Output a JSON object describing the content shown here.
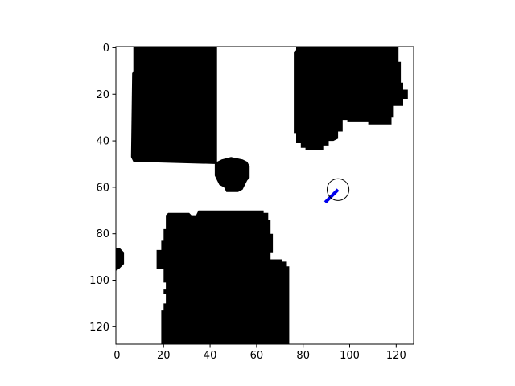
{
  "chart_data": {
    "type": "heatmap",
    "title": "",
    "xlabel": "",
    "ylabel": "",
    "xlim": [
      -0.5,
      127.5
    ],
    "ylim": [
      127.5,
      -0.5
    ],
    "y_inverted": true,
    "grid": false,
    "x_ticks": [
      0,
      20,
      40,
      60,
      80,
      100,
      120
    ],
    "y_ticks": [
      0,
      20,
      40,
      60,
      80,
      100,
      120
    ],
    "x_tick_labels": [
      "0",
      "20",
      "40",
      "60",
      "80",
      "100",
      "120"
    ],
    "y_tick_labels": [
      "0",
      "20",
      "40",
      "60",
      "80",
      "100",
      "120"
    ],
    "colors": {
      "occupied": "#000000",
      "free": "#ffffff",
      "robot": "#000000",
      "heading": "#0000ee"
    },
    "obstacles": [
      {
        "name": "obstacle-top-left",
        "points": [
          [
            7,
            -0.5
          ],
          [
            43,
            -0.5
          ],
          [
            43,
            50
          ],
          [
            7,
            49
          ],
          [
            6,
            47
          ],
          [
            6.5,
            11
          ],
          [
            7,
            10
          ]
        ]
      },
      {
        "name": "obstacle-top-right",
        "points": [
          [
            77,
            -0.5
          ],
          [
            121,
            -0.5
          ],
          [
            121,
            6
          ],
          [
            122,
            6
          ],
          [
            122,
            15
          ],
          [
            123,
            15
          ],
          [
            123,
            18
          ],
          [
            125,
            18
          ],
          [
            125,
            22
          ],
          [
            123,
            22
          ],
          [
            123,
            25
          ],
          [
            119,
            25
          ],
          [
            119,
            30
          ],
          [
            118,
            30
          ],
          [
            118,
            33
          ],
          [
            108,
            33
          ],
          [
            108,
            32
          ],
          [
            99,
            32
          ],
          [
            99,
            31
          ],
          [
            97,
            31
          ],
          [
            97,
            36
          ],
          [
            95,
            36
          ],
          [
            95,
            39
          ],
          [
            93,
            40
          ],
          [
            91,
            40
          ],
          [
            91,
            42
          ],
          [
            89,
            42
          ],
          [
            89,
            44
          ],
          [
            81,
            44
          ],
          [
            81,
            43
          ],
          [
            79,
            43
          ],
          [
            79,
            41
          ],
          [
            77,
            41
          ],
          [
            77,
            37
          ],
          [
            76,
            37
          ],
          [
            76,
            2
          ],
          [
            77,
            1
          ]
        ]
      },
      {
        "name": "obstacle-blob",
        "points": [
          [
            45,
            48
          ],
          [
            49,
            47
          ],
          [
            54,
            48
          ],
          [
            56,
            49
          ],
          [
            57,
            51
          ],
          [
            57,
            56
          ],
          [
            56,
            57
          ],
          [
            55,
            59
          ],
          [
            54,
            61
          ],
          [
            52,
            62
          ],
          [
            47,
            62
          ],
          [
            46,
            60
          ],
          [
            44,
            59
          ],
          [
            43,
            57
          ],
          [
            42,
            55
          ],
          [
            42,
            50
          ],
          [
            43,
            49
          ]
        ]
      },
      {
        "name": "obstacle-bottom",
        "points": [
          [
            21,
            72
          ],
          [
            22,
            71
          ],
          [
            31,
            71
          ],
          [
            32,
            72
          ],
          [
            34,
            72
          ],
          [
            35,
            70
          ],
          [
            63,
            70
          ],
          [
            63,
            71
          ],
          [
            65,
            71
          ],
          [
            65,
            74
          ],
          [
            66,
            74
          ],
          [
            66,
            80
          ],
          [
            67,
            80
          ],
          [
            67,
            88
          ],
          [
            66,
            88
          ],
          [
            66,
            91
          ],
          [
            71,
            91
          ],
          [
            71,
            92
          ],
          [
            73,
            92
          ],
          [
            73,
            94
          ],
          [
            74,
            94
          ],
          [
            74,
            127.5
          ],
          [
            19,
            127.5
          ],
          [
            19,
            113
          ],
          [
            20,
            113
          ],
          [
            20,
            110
          ],
          [
            21,
            110
          ],
          [
            21,
            106
          ],
          [
            20,
            106
          ],
          [
            20,
            104
          ],
          [
            21,
            104
          ],
          [
            21,
            101
          ],
          [
            20,
            101
          ],
          [
            20,
            95
          ],
          [
            17,
            95
          ],
          [
            17,
            87
          ],
          [
            19,
            87
          ],
          [
            19,
            83
          ],
          [
            20,
            83
          ],
          [
            20,
            78
          ],
          [
            21,
            78
          ]
        ]
      },
      {
        "name": "obstacle-left-edge",
        "points": [
          [
            -0.5,
            86
          ],
          [
            1,
            86
          ],
          [
            2,
            87
          ],
          [
            3,
            88
          ],
          [
            3,
            93
          ],
          [
            2,
            94
          ],
          [
            1,
            95
          ],
          [
            -0.5,
            96
          ]
        ]
      }
    ],
    "robot": {
      "x": 95,
      "y": 61,
      "radius": 4.7
    },
    "heading": {
      "x1": 89.5,
      "y1": 66.5,
      "x2": 95,
      "y2": 61
    }
  }
}
